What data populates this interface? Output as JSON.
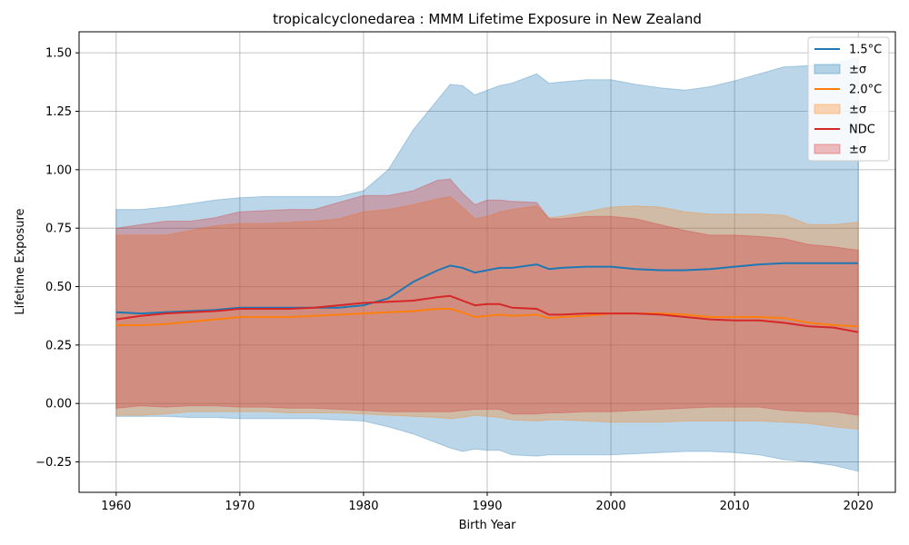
{
  "chart_data": {
    "type": "area",
    "title": "tropicalcyclonedarea : MMM Lifetime Exposure in New Zealand",
    "xlabel": "Birth Year",
    "ylabel": "Lifetime Exposure",
    "xlim": [
      1957,
      2023
    ],
    "ylim": [
      -0.38,
      1.59
    ],
    "xticks": [
      1960,
      1970,
      1980,
      1990,
      2000,
      2010,
      2020
    ],
    "xtick_labels": [
      "1960",
      "1970",
      "1980",
      "1990",
      "2000",
      "2010",
      "2020"
    ],
    "yticks": [
      -0.25,
      0,
      0.25,
      0.5,
      0.75,
      1.0,
      1.25,
      1.5
    ],
    "ytick_labels": [
      "−0.25",
      "0.00",
      "0.25",
      "0.50",
      "0.75",
      "1.00",
      "1.25",
      "1.50"
    ],
    "grid": true,
    "legend_position": "top-right",
    "x": [
      1960,
      1962,
      1964,
      1966,
      1968,
      1970,
      1972,
      1974,
      1976,
      1978,
      1980,
      1982,
      1984,
      1986,
      1987,
      1988,
      1989,
      1990,
      1991,
      1992,
      1994,
      1995,
      1996,
      1998,
      2000,
      2002,
      2004,
      2006,
      2008,
      2010,
      2012,
      2014,
      2016,
      2018,
      2020
    ],
    "series": [
      {
        "name": "1.5°C",
        "band_label": "±σ",
        "color": "#1f77b4",
        "fill": "#1f77b4",
        "mean": [
          0.39,
          0.385,
          0.39,
          0.395,
          0.4,
          0.41,
          0.41,
          0.41,
          0.41,
          0.41,
          0.42,
          0.45,
          0.52,
          0.57,
          0.59,
          0.58,
          0.56,
          0.57,
          0.58,
          0.58,
          0.595,
          0.575,
          0.58,
          0.585,
          0.585,
          0.575,
          0.57,
          0.57,
          0.575,
          0.585,
          0.595,
          0.6,
          0.6,
          0.6,
          0.6
        ],
        "upper": [
          0.83,
          0.83,
          0.84,
          0.855,
          0.87,
          0.88,
          0.885,
          0.885,
          0.885,
          0.885,
          0.91,
          1.0,
          1.17,
          1.3,
          1.365,
          1.36,
          1.32,
          1.34,
          1.36,
          1.37,
          1.41,
          1.37,
          1.375,
          1.385,
          1.385,
          1.365,
          1.35,
          1.34,
          1.355,
          1.38,
          1.41,
          1.44,
          1.445,
          1.455,
          1.48
        ],
        "lower": [
          -0.055,
          -0.055,
          -0.055,
          -0.06,
          -0.06,
          -0.065,
          -0.065,
          -0.065,
          -0.065,
          -0.07,
          -0.075,
          -0.1,
          -0.13,
          -0.17,
          -0.19,
          -0.205,
          -0.195,
          -0.2,
          -0.2,
          -0.22,
          -0.225,
          -0.22,
          -0.22,
          -0.22,
          -0.22,
          -0.215,
          -0.21,
          -0.205,
          -0.205,
          -0.21,
          -0.22,
          -0.24,
          -0.25,
          -0.265,
          -0.29
        ]
      },
      {
        "name": "2.0°C",
        "band_label": "±σ",
        "color": "#ff7f0e",
        "fill": "#ff7f0e",
        "mean": [
          0.335,
          0.335,
          0.34,
          0.35,
          0.36,
          0.37,
          0.37,
          0.37,
          0.375,
          0.38,
          0.385,
          0.39,
          0.395,
          0.405,
          0.405,
          0.39,
          0.37,
          0.375,
          0.38,
          0.375,
          0.38,
          0.365,
          0.37,
          0.375,
          0.385,
          0.385,
          0.385,
          0.38,
          0.37,
          0.37,
          0.37,
          0.365,
          0.345,
          0.335,
          0.33
        ],
        "upper": [
          0.72,
          0.72,
          0.72,
          0.74,
          0.76,
          0.77,
          0.77,
          0.775,
          0.78,
          0.79,
          0.82,
          0.83,
          0.85,
          0.875,
          0.885,
          0.84,
          0.79,
          0.8,
          0.82,
          0.83,
          0.845,
          0.795,
          0.8,
          0.82,
          0.84,
          0.845,
          0.84,
          0.82,
          0.81,
          0.81,
          0.81,
          0.805,
          0.765,
          0.765,
          0.775
        ],
        "lower": [
          -0.05,
          -0.05,
          -0.045,
          -0.035,
          -0.035,
          -0.035,
          -0.035,
          -0.04,
          -0.04,
          -0.04,
          -0.045,
          -0.05,
          -0.055,
          -0.06,
          -0.065,
          -0.06,
          -0.05,
          -0.055,
          -0.06,
          -0.07,
          -0.075,
          -0.07,
          -0.07,
          -0.075,
          -0.08,
          -0.08,
          -0.08,
          -0.075,
          -0.075,
          -0.075,
          -0.075,
          -0.08,
          -0.085,
          -0.1,
          -0.11
        ]
      },
      {
        "name": "NDC",
        "band_label": "±σ",
        "color": "#d62728",
        "fill": "#d62728",
        "mean": [
          0.36,
          0.375,
          0.385,
          0.39,
          0.395,
          0.405,
          0.405,
          0.405,
          0.41,
          0.42,
          0.43,
          0.435,
          0.44,
          0.455,
          0.46,
          0.44,
          0.42,
          0.425,
          0.425,
          0.41,
          0.405,
          0.38,
          0.38,
          0.385,
          0.385,
          0.385,
          0.38,
          0.37,
          0.36,
          0.355,
          0.355,
          0.345,
          0.33,
          0.325,
          0.305
        ],
        "upper": [
          0.75,
          0.765,
          0.78,
          0.78,
          0.795,
          0.82,
          0.825,
          0.83,
          0.83,
          0.86,
          0.89,
          0.89,
          0.91,
          0.955,
          0.96,
          0.9,
          0.85,
          0.87,
          0.87,
          0.865,
          0.86,
          0.79,
          0.79,
          0.8,
          0.8,
          0.79,
          0.765,
          0.74,
          0.72,
          0.72,
          0.715,
          0.705,
          0.68,
          0.67,
          0.655
        ],
        "lower": [
          -0.02,
          -0.01,
          -0.015,
          -0.01,
          -0.01,
          -0.015,
          -0.015,
          -0.02,
          -0.02,
          -0.025,
          -0.03,
          -0.035,
          -0.035,
          -0.035,
          -0.035,
          -0.03,
          -0.025,
          -0.025,
          -0.025,
          -0.045,
          -0.045,
          -0.04,
          -0.04,
          -0.035,
          -0.035,
          -0.03,
          -0.025,
          -0.02,
          -0.015,
          -0.015,
          -0.015,
          -0.03,
          -0.035,
          -0.035,
          -0.05
        ]
      }
    ]
  }
}
